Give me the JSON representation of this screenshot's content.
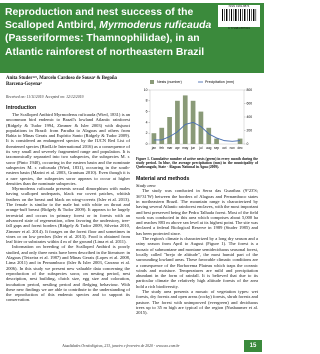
{
  "header": {
    "issn": "ISSN 1981-8874",
    "barcode_number": "9 771981 887003",
    "title_start": "Reproduction and nest success of the Scalloped Antbird, ",
    "title_species": "Myrmoderus ruficauda",
    "title_end": " (Passeriformes: Thamnophilidae), in an Atlantic rainforest of northeastern Brazil"
  },
  "authors": {
    "names": "Anita Studer¹²³, Marcelo Cardoso de Sousa² & Begoña Barcena-Goyena²",
    "received": "Received on: 11/11/2019. Accepted on: 12/12/2019."
  },
  "intro": {
    "heading": "Introduction",
    "paragraphs": [
      "The Scalloped Antbird Myrmoderus ruficauda (Wied, 1831) is an uncommon bird endemic to Brazil's lowland Atlantic rainforest (Ridgely & Tudor 1994, Zimmer & Isler 2003) with disjunct populations in Brazil: from Paraíba to Alagoas and others from Bahia to Minas Gerais and Espírito Santo (Ridgely & Tudor 2009). It is considered an endangered species by the IUCN Red List of threatened species (BirdLife International 2016) as a consequence of its very small and severely fragmented range and population. It is taxonomically separated into two subspecies, the subspecies M. r. soror (Pinto 1940), occurring in the eastern basin and the nominate subspecies M. r. ruficauda (Wied, 1831), occurring in the south-eastern basin (Marini et al. 2003, Grantsau 2010). Even though it is a rare species, the subspecies soror appears to occur at higher densities than the nominate subspecies.",
      "Myrmoderus ruficauda presents sexual dimorphism with males having scalloped underparts, black ear covert patches, whitish feathers on the breast and black on wing-coverts (Isler et al. 2013). The female is similar to the male but with white on throat and orange-buff breast (Ridgely & Tudor 2009). It appears to be largely terrestrial and occurs in primary forest or in forests with an advanced state of regeneration, often favoring the understory, tree-fall gaps and forest borders (Ridgely & Tudor 2009, Silveira 2010, Zimmer et al. 2014). It forages on the forest floor and sometimes in vines or on low perches (Isler et al. 2013). Food is obtained from leaf litter or substrates within 4 m of the ground (Lima et al. 2011).",
      "Information on breeding of the Scalloped Antbird is poorly studied, and only three nests have been described in the literature: in Alagoas (Teixeira et al. 1987) and Minas Gerais (Lopes et al. 2008, Lima 2011) and in Pernambuco (Isler & Isler 2003, Carrano et al. 2006). In this study we present new valuable data concerning the reproduction of the subspecies soror, on nesting period, nest description, nest building, clutch size, egg size and coloration, incubation period, nestling period and fledging behaviour. With these new findings we are able to contribute to the understanding of the reproduction of this endemic species and to support its conservation."
    ]
  },
  "chart_data": {
    "type": "bar",
    "categories": [
      "jan",
      "feb",
      "mar",
      "apr",
      "may",
      "jun",
      "jul",
      "aug",
      "sep",
      "oct",
      "nov",
      "dec"
    ],
    "series": [
      {
        "name": "Nests (number)",
        "type": "bar",
        "color": "#8a9a78",
        "values": [
          2,
          3,
          5,
          8,
          9,
          8,
          6,
          3,
          1,
          0,
          0,
          1
        ]
      },
      {
        "name": "Precipitation (mm)",
        "type": "line",
        "axis": "y2",
        "color": "#4a6fb0",
        "values": [
          60,
          60,
          110,
          180,
          290,
          320,
          260,
          150,
          90,
          50,
          40,
          50
        ]
      }
    ],
    "ylim": [
      0,
      10
    ],
    "yticks": [
      0,
      2,
      4,
      6,
      8,
      10
    ],
    "y2lim": [
      0,
      800
    ],
    "y2ticks": [
      0,
      200,
      400,
      600,
      800
    ],
    "caption": "Figure 1. Cumulative number of active nests (green) in every month during the study period. In blue, the average precipitation (mm) in the municipality of Quebrangulo, State - Alagoas National in Agua (2009)."
  },
  "methods": {
    "heading": "Material and methods",
    "subheading": "Study area",
    "paragraphs": [
      "The study was conducted in Serra das Guaribas (9°23'S; 36°31'W) between the borders of Alagoas and Pernambuco states in northeastern Brazil. The mountain range is characterized by having several Atlantic rainforest enclaves, with the most important and best preserved being the Pedra Talhada forest. Most of the field work was conducted in this area which comprises about 5,000 ha and reaches 883 m above sea level at its highest point. The site was declared a federal Biological Reserve in 1989 (Studer 1985) and has been protected since.",
      "The region's climate is characterized by a long dry season and a rainy season from April to August (Figure 1). The forest is a mosaic of submontane and montane semideciduous seasonal forest, locally called \"brejo de altitude\", the most humid part of the surrounding lowland areas. These favorable climatic conditions are a consequence of the Borborema Plateau which traps the oceanic winds and moisture. Temperatures are mild and precipitation abundant in the form of rainfall. It is believed that due to its particular climate the relatively high altitude forests of the area hold a rich biodiversity.",
      "The study area presents a mosaic of vegetation types: wet forests, dry forests and open areas (rocky) forests, shrub forests and pasture. The forest with unimproved (evergreen) and deciduous trees up to 35 m high are typical of the region (Nusbaumer et al. 2015)."
    ]
  },
  "footer": {
    "journal": "Atualidades Ornitológicas, 213, janeiro e fevereiro de 2020 - www.ao.com.br",
    "page": "15"
  }
}
